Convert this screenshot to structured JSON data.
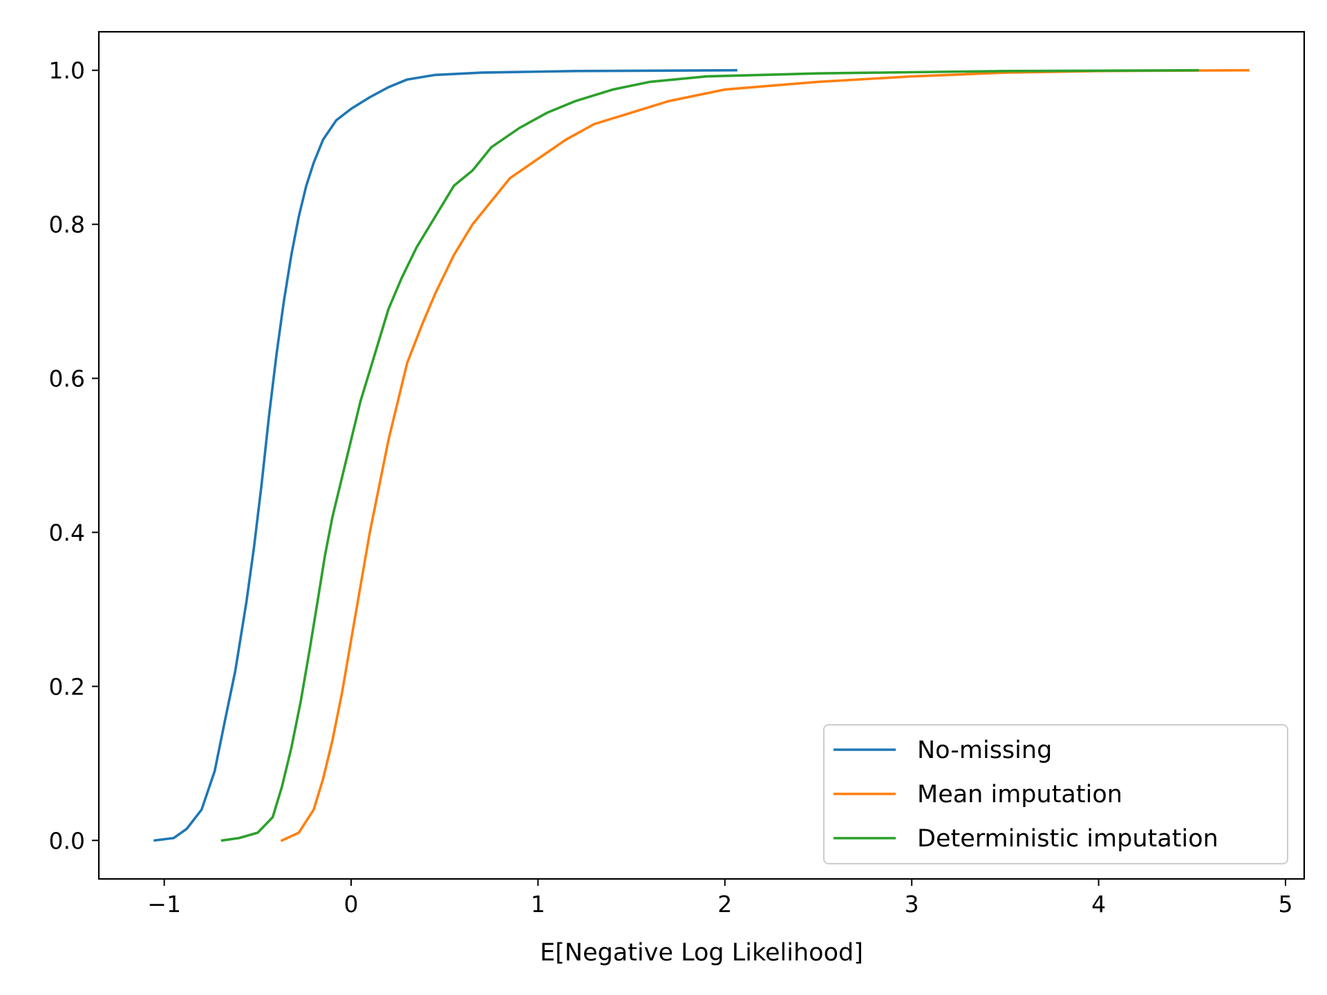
{
  "chart_data": {
    "type": "line",
    "title": "",
    "xlabel": "E[Negative Log Likelihood]",
    "ylabel": "",
    "xlim": [
      -1.35,
      5.1
    ],
    "ylim": [
      -0.05,
      1.05
    ],
    "xticks": [
      -1,
      0,
      1,
      2,
      3,
      4,
      5
    ],
    "xtick_labels": [
      "−1",
      "0",
      "1",
      "2",
      "3",
      "4",
      "5"
    ],
    "yticks": [
      0.0,
      0.2,
      0.4,
      0.6,
      0.8,
      1.0
    ],
    "ytick_labels": [
      "0.0",
      "0.2",
      "0.4",
      "0.6",
      "0.8",
      "1.0"
    ],
    "grid": false,
    "legend_position": "lower-right",
    "series": [
      {
        "name": "No-missing",
        "color": "#1f77b4",
        "points": [
          [
            -1.05,
            0.0
          ],
          [
            -0.95,
            0.003
          ],
          [
            -0.88,
            0.015
          ],
          [
            -0.8,
            0.04
          ],
          [
            -0.73,
            0.09
          ],
          [
            -0.68,
            0.15
          ],
          [
            -0.62,
            0.22
          ],
          [
            -0.56,
            0.31
          ],
          [
            -0.52,
            0.38
          ],
          [
            -0.48,
            0.46
          ],
          [
            -0.44,
            0.55
          ],
          [
            -0.4,
            0.63
          ],
          [
            -0.36,
            0.7
          ],
          [
            -0.32,
            0.76
          ],
          [
            -0.28,
            0.81
          ],
          [
            -0.24,
            0.85
          ],
          [
            -0.2,
            0.88
          ],
          [
            -0.15,
            0.91
          ],
          [
            -0.08,
            0.935
          ],
          [
            0.0,
            0.95
          ],
          [
            0.1,
            0.965
          ],
          [
            0.2,
            0.978
          ],
          [
            0.3,
            0.988
          ],
          [
            0.45,
            0.994
          ],
          [
            0.7,
            0.997
          ],
          [
            1.2,
            0.999
          ],
          [
            2.06,
            1.0
          ]
        ]
      },
      {
        "name": "Mean imputation",
        "color": "#ff7f0e",
        "points": [
          [
            -0.37,
            0.0
          ],
          [
            -0.28,
            0.01
          ],
          [
            -0.2,
            0.04
          ],
          [
            -0.15,
            0.08
          ],
          [
            -0.1,
            0.13
          ],
          [
            -0.05,
            0.19
          ],
          [
            0.0,
            0.26
          ],
          [
            0.05,
            0.33
          ],
          [
            0.1,
            0.4
          ],
          [
            0.15,
            0.46
          ],
          [
            0.2,
            0.52
          ],
          [
            0.25,
            0.57
          ],
          [
            0.3,
            0.62
          ],
          [
            0.38,
            0.67
          ],
          [
            0.45,
            0.71
          ],
          [
            0.55,
            0.76
          ],
          [
            0.65,
            0.8
          ],
          [
            0.75,
            0.83
          ],
          [
            0.85,
            0.86
          ],
          [
            1.0,
            0.885
          ],
          [
            1.15,
            0.91
          ],
          [
            1.3,
            0.93
          ],
          [
            1.5,
            0.945
          ],
          [
            1.7,
            0.96
          ],
          [
            2.0,
            0.975
          ],
          [
            2.5,
            0.985
          ],
          [
            3.0,
            0.992
          ],
          [
            3.5,
            0.997
          ],
          [
            4.0,
            0.999
          ],
          [
            4.8,
            1.0
          ]
        ]
      },
      {
        "name": "Deterministic imputation",
        "color": "#2ca02c",
        "points": [
          [
            -0.69,
            0.0
          ],
          [
            -0.6,
            0.003
          ],
          [
            -0.5,
            0.01
          ],
          [
            -0.42,
            0.03
          ],
          [
            -0.37,
            0.07
          ],
          [
            -0.32,
            0.12
          ],
          [
            -0.27,
            0.18
          ],
          [
            -0.22,
            0.25
          ],
          [
            -0.18,
            0.31
          ],
          [
            -0.14,
            0.37
          ],
          [
            -0.1,
            0.42
          ],
          [
            -0.05,
            0.47
          ],
          [
            0.0,
            0.52
          ],
          [
            0.05,
            0.57
          ],
          [
            0.1,
            0.61
          ],
          [
            0.15,
            0.65
          ],
          [
            0.2,
            0.69
          ],
          [
            0.27,
            0.73
          ],
          [
            0.35,
            0.77
          ],
          [
            0.45,
            0.81
          ],
          [
            0.55,
            0.85
          ],
          [
            0.65,
            0.87
          ],
          [
            0.75,
            0.9
          ],
          [
            0.9,
            0.925
          ],
          [
            1.05,
            0.945
          ],
          [
            1.2,
            0.96
          ],
          [
            1.4,
            0.975
          ],
          [
            1.6,
            0.985
          ],
          [
            1.9,
            0.992
          ],
          [
            2.5,
            0.996
          ],
          [
            3.5,
            0.999
          ],
          [
            4.53,
            1.0
          ]
        ]
      }
    ]
  }
}
